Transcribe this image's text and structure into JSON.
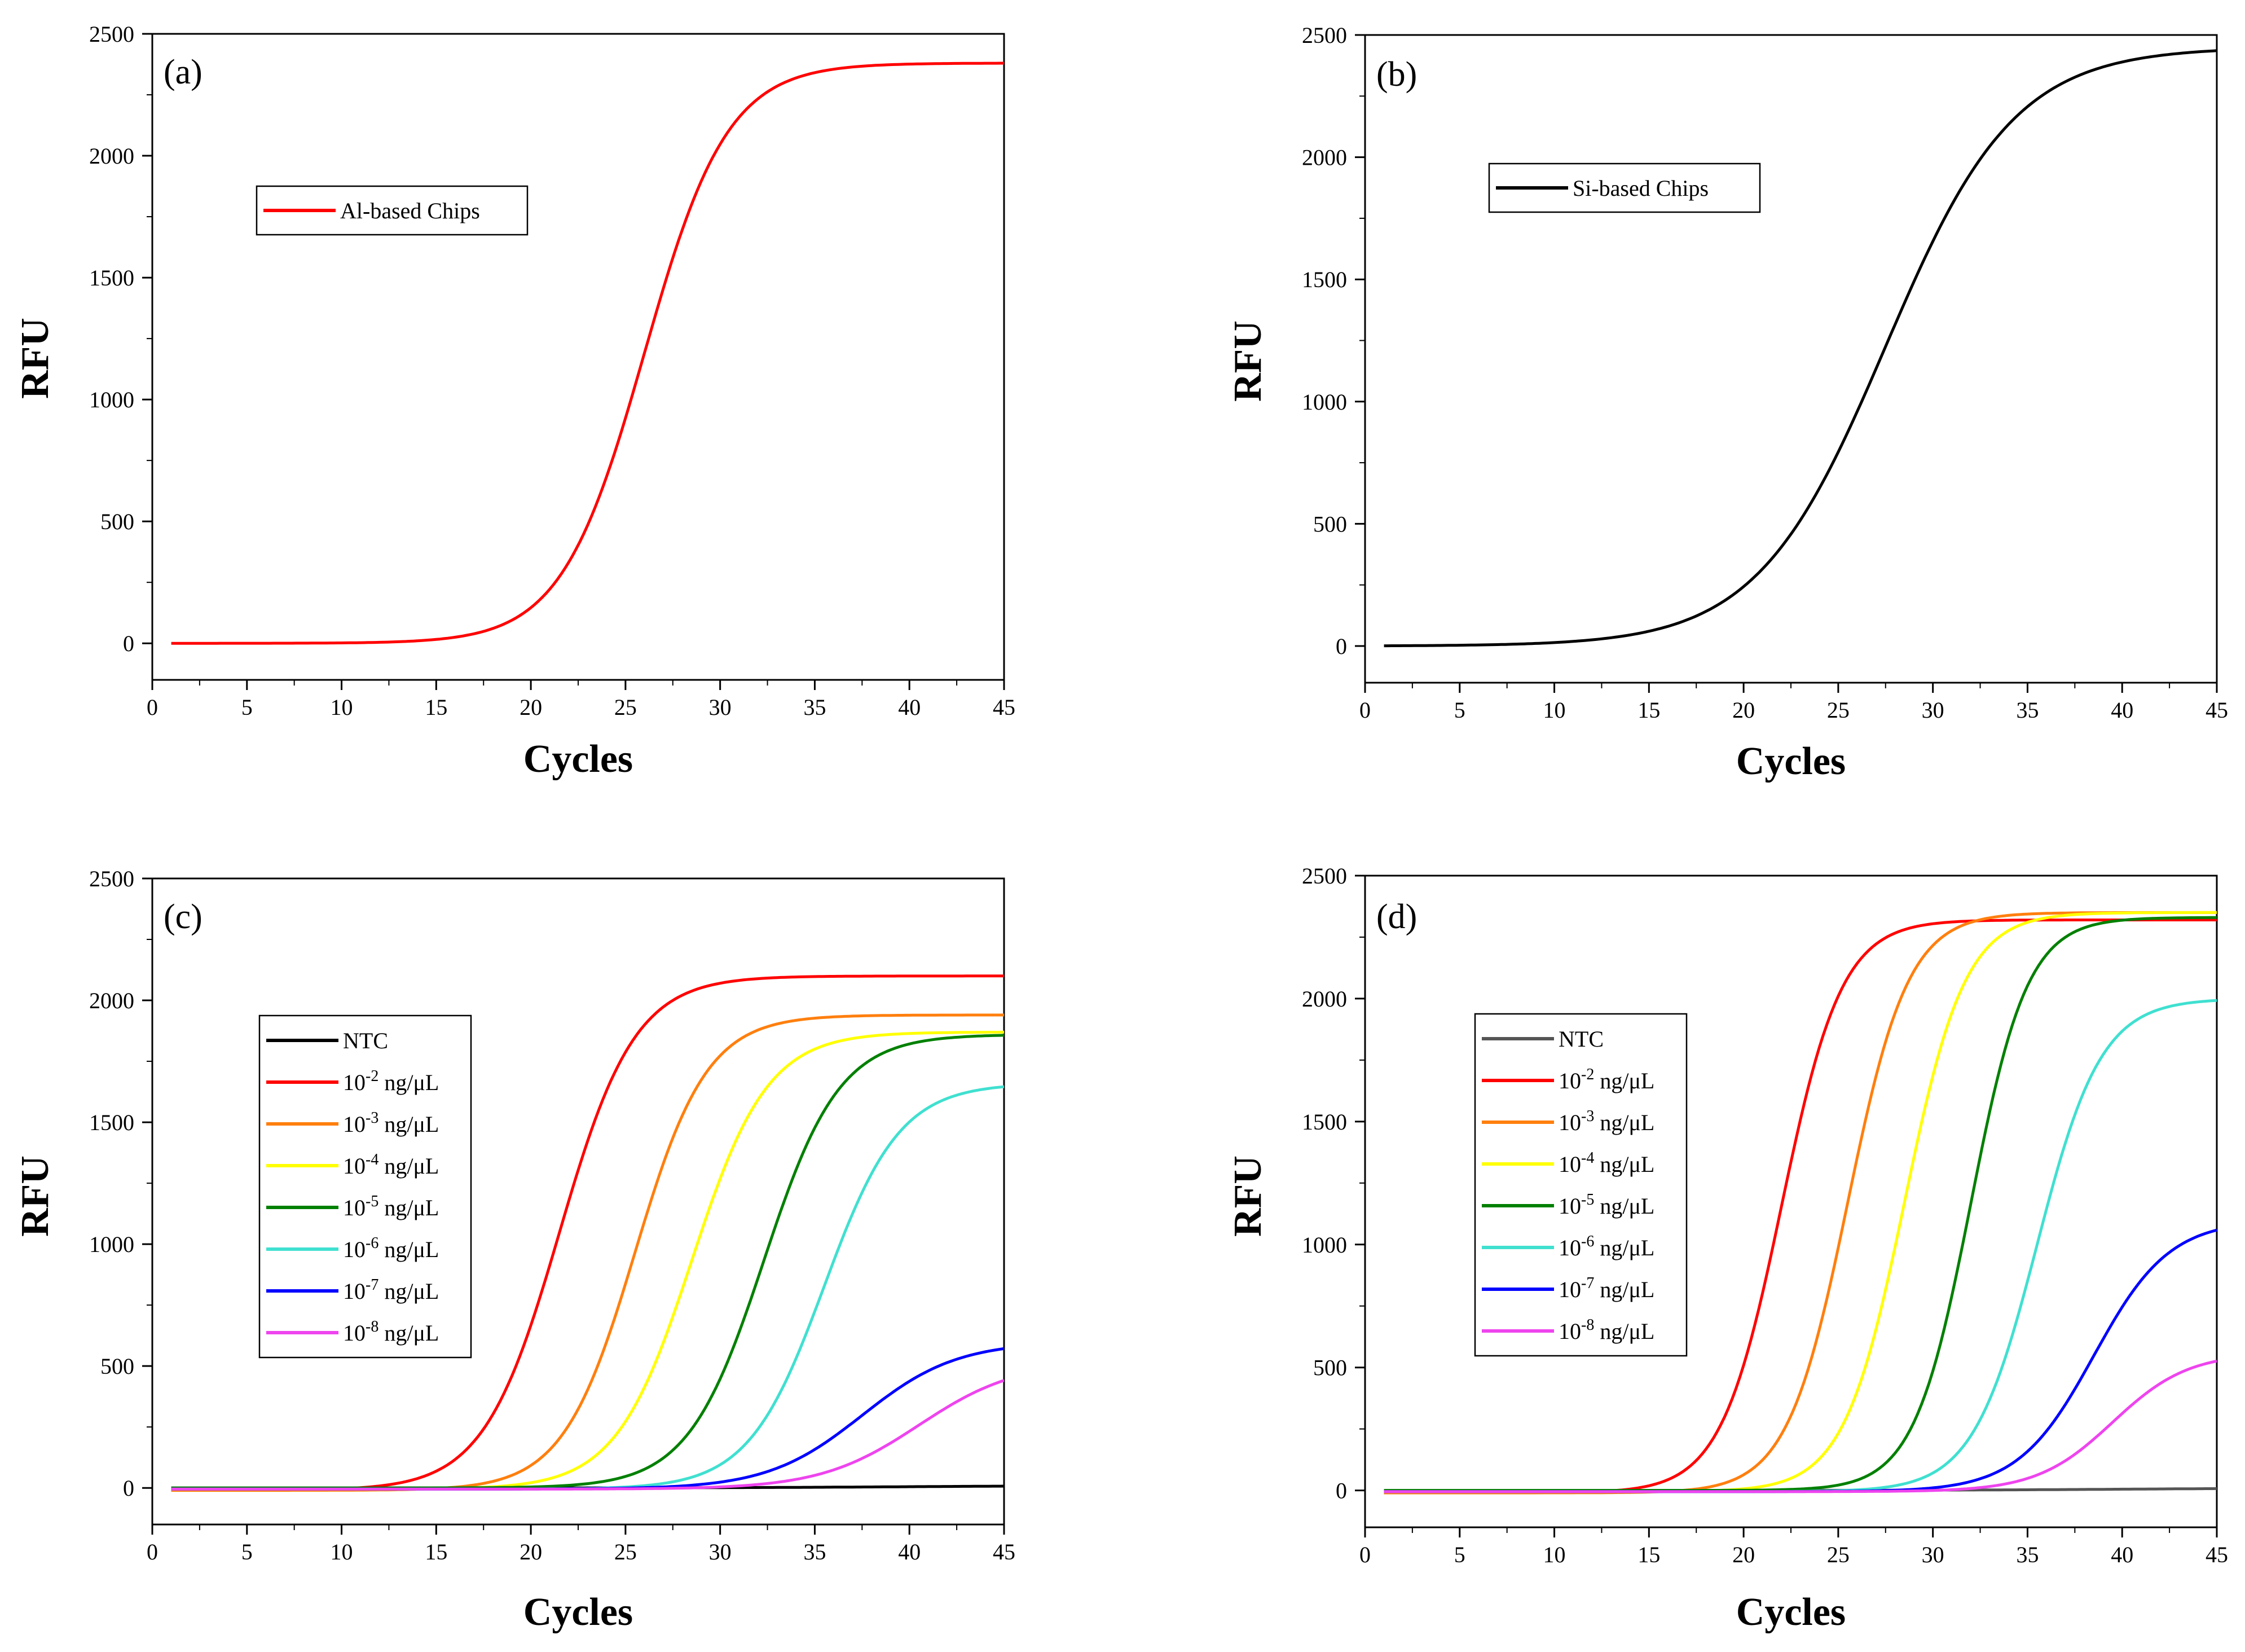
{
  "figure_labels": [
    "(a)",
    "(b)",
    "(c)",
    "(d)"
  ],
  "chart_data": [
    {
      "type": "line",
      "panel_label": "(a)",
      "title": "",
      "xlabel": "Cycles",
      "ylabel": "RFU",
      "xlim": [
        0,
        45
      ],
      "ylim": [
        -150,
        2500
      ],
      "xticks": [
        0,
        5,
        10,
        15,
        20,
        25,
        30,
        35,
        40,
        45
      ],
      "yticks": [
        0,
        500,
        1000,
        1500,
        2000,
        2500
      ],
      "legend_position": "upper-left",
      "series": [
        {
          "name": "Al-based Chips",
          "color": "#ff0000",
          "x_start": 1,
          "x_end": 45,
          "baseline": 0,
          "plateau": 2380,
          "midpoint": 26,
          "slope": 2.2
        }
      ]
    },
    {
      "type": "line",
      "panel_label": "(b)",
      "title": "",
      "xlabel": "Cycles",
      "ylabel": "RFU",
      "xlim": [
        0,
        45
      ],
      "ylim": [
        -150,
        2500
      ],
      "xticks": [
        0,
        5,
        10,
        15,
        20,
        25,
        30,
        35,
        40,
        45
      ],
      "yticks": [
        0,
        500,
        1000,
        1500,
        2000,
        2500
      ],
      "legend_position": "upper-left",
      "series": [
        {
          "name": "Si-based Chips",
          "color": "#000000",
          "x_start": 1,
          "x_end": 45,
          "baseline": 0,
          "plateau": 2450,
          "midpoint": 27.5,
          "slope": 3.4
        }
      ]
    },
    {
      "type": "line",
      "panel_label": "(c)",
      "title": "",
      "xlabel": "Cycles",
      "ylabel": "RFU",
      "xlim": [
        0,
        45
      ],
      "ylim": [
        -150,
        2500
      ],
      "xticks": [
        0,
        5,
        10,
        15,
        20,
        25,
        30,
        35,
        40,
        45
      ],
      "yticks": [
        0,
        500,
        1000,
        1500,
        2000,
        2500
      ],
      "legend_position": "center-left",
      "series": [
        {
          "name": "NTC",
          "base": "",
          "exp": "",
          "unit": "",
          "color": "#000000",
          "x_start": 1,
          "x_end": 45,
          "baseline": 0,
          "plateau": 10,
          "midpoint": 40,
          "slope": 5
        },
        {
          "name": "10-2 ng/μL",
          "base": "10",
          "exp": "-2",
          "unit": " ng/μL",
          "color": "#ff0000",
          "x_start": 1,
          "x_end": 45,
          "baseline": -10,
          "plateau": 2100,
          "midpoint": 21.5,
          "slope": 2.0
        },
        {
          "name": "10-3 ng/μL",
          "base": "10",
          "exp": "-3",
          "unit": " ng/μL",
          "color": "#ff7f0e",
          "x_start": 1,
          "x_end": 45,
          "baseline": -10,
          "plateau": 1940,
          "midpoint": 25.5,
          "slope": 1.9
        },
        {
          "name": "10-4 ng/μL",
          "base": "10",
          "exp": "-4",
          "unit": " ng/μL",
          "color": "#ffff00",
          "x_start": 1,
          "x_end": 45,
          "baseline": -5,
          "plateau": 1870,
          "midpoint": 28.5,
          "slope": 2.0
        },
        {
          "name": "10-5 ng/μL",
          "base": "10",
          "exp": "-5",
          "unit": " ng/μL",
          "color": "#008000",
          "x_start": 1,
          "x_end": 45,
          "baseline": 0,
          "plateau": 1860,
          "midpoint": 32.3,
          "slope": 2.0
        },
        {
          "name": "10-6 ng/μL",
          "base": "10",
          "exp": "-6",
          "unit": " ng/μL",
          "color": "#40e0d0",
          "x_start": 1,
          "x_end": 45,
          "baseline": -5,
          "plateau": 1660,
          "midpoint": 35.5,
          "slope": 2.0
        },
        {
          "name": "10-7 ng/μL",
          "base": "10",
          "exp": "-7",
          "unit": " ng/μL",
          "color": "#0000ff",
          "x_start": 1,
          "x_end": 45,
          "baseline": -5,
          "plateau": 600,
          "midpoint": 37.5,
          "slope": 2.5
        },
        {
          "name": "10-8 ng/μL",
          "base": "10",
          "exp": "-8",
          "unit": " ng/μL",
          "color": "#ee44ee",
          "x_start": 1,
          "x_end": 45,
          "baseline": -5,
          "plateau": 520,
          "midpoint": 40.5,
          "slope": 2.6
        }
      ]
    },
    {
      "type": "line",
      "panel_label": "(d)",
      "title": "",
      "xlabel": "Cycles",
      "ylabel": "RFU",
      "xlim": [
        0,
        45
      ],
      "ylim": [
        -150,
        2500
      ],
      "xticks": [
        0,
        5,
        10,
        15,
        20,
        25,
        30,
        35,
        40,
        45
      ],
      "yticks": [
        0,
        500,
        1000,
        1500,
        2000,
        2500
      ],
      "legend_position": "center-left",
      "series": [
        {
          "name": "NTC",
          "base": "",
          "exp": "",
          "unit": "",
          "color": "#555555",
          "x_start": 1,
          "x_end": 45,
          "baseline": 0,
          "plateau": 10,
          "midpoint": 40,
          "slope": 5
        },
        {
          "name": "10-2 ng/μL",
          "base": "10",
          "exp": "-2",
          "unit": " ng/μL",
          "color": "#ff0000",
          "x_start": 1,
          "x_end": 45,
          "baseline": -10,
          "plateau": 2320,
          "midpoint": 22.0,
          "slope": 1.6
        },
        {
          "name": "10-3 ng/μL",
          "base": "10",
          "exp": "-3",
          "unit": " ng/μL",
          "color": "#ff7f0e",
          "x_start": 1,
          "x_end": 45,
          "baseline": -10,
          "plateau": 2350,
          "midpoint": 25.5,
          "slope": 1.6
        },
        {
          "name": "10-4 ng/μL",
          "base": "10",
          "exp": "-4",
          "unit": " ng/μL",
          "color": "#ffff00",
          "x_start": 1,
          "x_end": 45,
          "baseline": -5,
          "plateau": 2350,
          "midpoint": 28.5,
          "slope": 1.6
        },
        {
          "name": "10-5 ng/μL",
          "base": "10",
          "exp": "-5",
          "unit": " ng/μL",
          "color": "#008000",
          "x_start": 1,
          "x_end": 45,
          "baseline": 0,
          "plateau": 2330,
          "midpoint": 32.0,
          "slope": 1.5
        },
        {
          "name": "10-6 ng/μL",
          "base": "10",
          "exp": "-6",
          "unit": " ng/μL",
          "color": "#40e0d0",
          "x_start": 1,
          "x_end": 45,
          "baseline": -5,
          "plateau": 2000,
          "midpoint": 35.5,
          "slope": 1.7
        },
        {
          "name": "10-7 ng/μL",
          "base": "10",
          "exp": "-7",
          "unit": " ng/μL",
          "color": "#0000ff",
          "x_start": 1,
          "x_end": 45,
          "baseline": -5,
          "plateau": 1100,
          "midpoint": 38.5,
          "slope": 2.0
        },
        {
          "name": "10-8 ng/μL",
          "base": "10",
          "exp": "-8",
          "unit": " ng/μL",
          "color": "#ee44ee",
          "x_start": 1,
          "x_end": 45,
          "baseline": -5,
          "plateau": 560,
          "midpoint": 39.5,
          "slope": 2.0
        }
      ]
    }
  ]
}
